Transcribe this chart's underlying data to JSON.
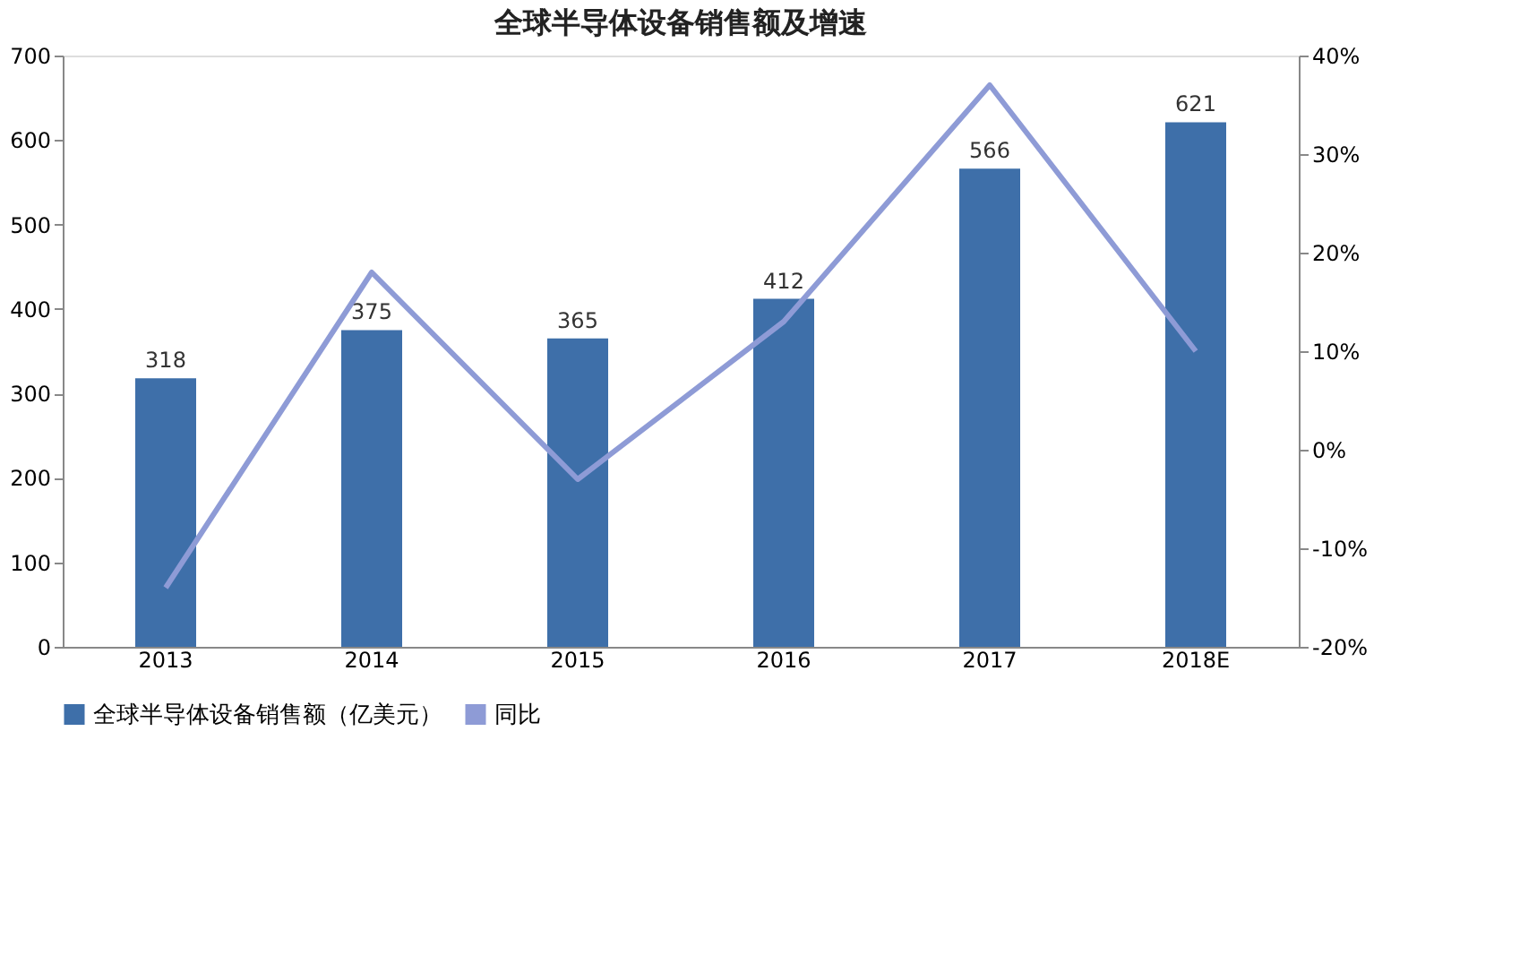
{
  "chart_data": {
    "type": "bar",
    "title": "全球半导体设备销售额及增速",
    "categories": [
      "2013",
      "2014",
      "2015",
      "2016",
      "2017",
      "2018E"
    ],
    "series": [
      {
        "name": "全球半导体设备销售额（亿美元）",
        "color": "#3e6fa9",
        "values": [
          318,
          375,
          365,
          412,
          566,
          621
        ],
        "data_labels": true
      },
      {
        "name": "同比",
        "type": "line",
        "axis": "y2",
        "color": "#8e9bd6",
        "values": [
          -14,
          18,
          -3,
          13,
          37,
          10
        ],
        "marker": "none"
      }
    ],
    "ylim": [
      0,
      700
    ],
    "yticks": [
      0,
      100,
      200,
      300,
      400,
      500,
      600,
      700
    ],
    "y2lim": [
      -20,
      40
    ],
    "y2ticks": [
      {
        "value": -20,
        "label": "-20%"
      },
      {
        "value": -10,
        "label": "-10%"
      },
      {
        "value": 0,
        "label": "0%"
      },
      {
        "value": 10,
        "label": "10%"
      },
      {
        "value": 20,
        "label": "20%"
      },
      {
        "value": 30,
        "label": "30%"
      },
      {
        "value": 40,
        "label": "40%"
      }
    ],
    "grid": false,
    "legend": "bottom"
  }
}
